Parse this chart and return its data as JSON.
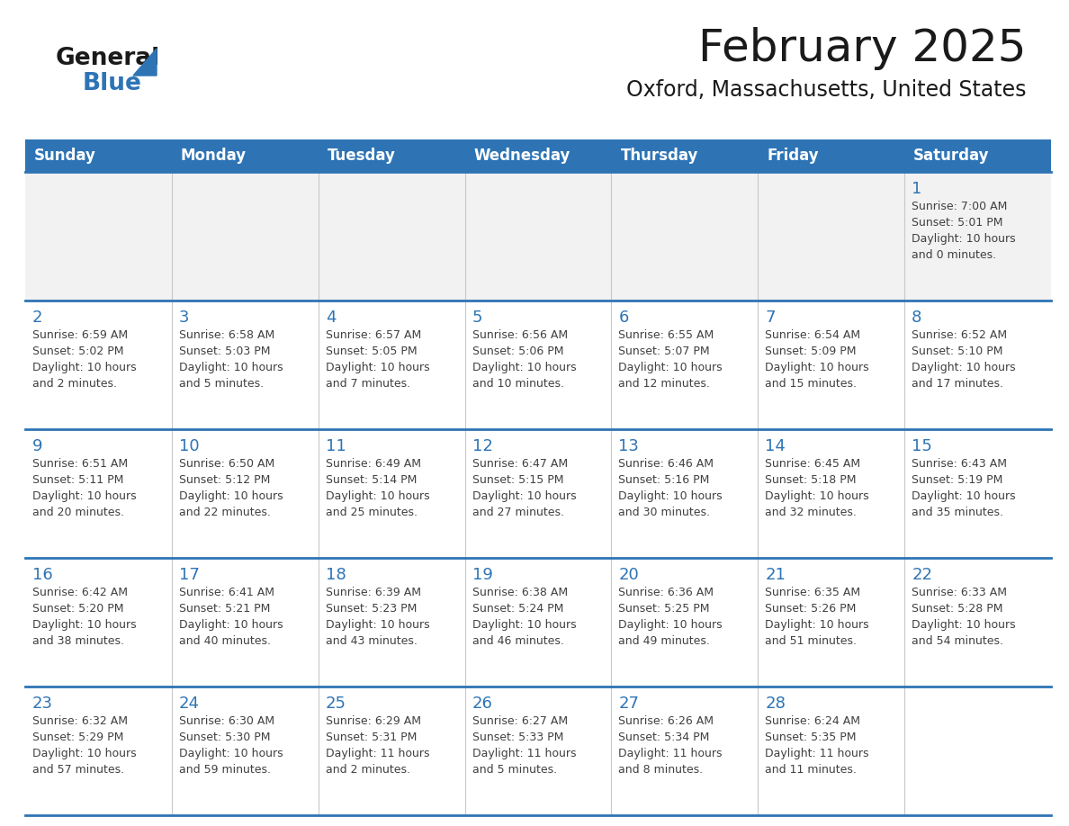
{
  "title": "February 2025",
  "subtitle": "Oxford, Massachusetts, United States",
  "days_of_week": [
    "Sunday",
    "Monday",
    "Tuesday",
    "Wednesday",
    "Thursday",
    "Friday",
    "Saturday"
  ],
  "header_bg": "#2E74B5",
  "header_text": "#FFFFFF",
  "cell_bg_white": "#FFFFFF",
  "cell_bg_gray": "#F2F2F2",
  "day_number_color": "#2E74B5",
  "text_color": "#404040",
  "line_color": "#2E74B5",
  "calendar_data": [
    [
      null,
      null,
      null,
      null,
      null,
      null,
      1
    ],
    [
      2,
      3,
      4,
      5,
      6,
      7,
      8
    ],
    [
      9,
      10,
      11,
      12,
      13,
      14,
      15
    ],
    [
      16,
      17,
      18,
      19,
      20,
      21,
      22
    ],
    [
      23,
      24,
      25,
      26,
      27,
      28,
      null
    ]
  ],
  "sun_data": {
    "1": {
      "rise": "7:00 AM",
      "set": "5:01 PM",
      "hours": 10,
      "minutes": 0
    },
    "2": {
      "rise": "6:59 AM",
      "set": "5:02 PM",
      "hours": 10,
      "minutes": 2
    },
    "3": {
      "rise": "6:58 AM",
      "set": "5:03 PM",
      "hours": 10,
      "minutes": 5
    },
    "4": {
      "rise": "6:57 AM",
      "set": "5:05 PM",
      "hours": 10,
      "minutes": 7
    },
    "5": {
      "rise": "6:56 AM",
      "set": "5:06 PM",
      "hours": 10,
      "minutes": 10
    },
    "6": {
      "rise": "6:55 AM",
      "set": "5:07 PM",
      "hours": 10,
      "minutes": 12
    },
    "7": {
      "rise": "6:54 AM",
      "set": "5:09 PM",
      "hours": 10,
      "minutes": 15
    },
    "8": {
      "rise": "6:52 AM",
      "set": "5:10 PM",
      "hours": 10,
      "minutes": 17
    },
    "9": {
      "rise": "6:51 AM",
      "set": "5:11 PM",
      "hours": 10,
      "minutes": 20
    },
    "10": {
      "rise": "6:50 AM",
      "set": "5:12 PM",
      "hours": 10,
      "minutes": 22
    },
    "11": {
      "rise": "6:49 AM",
      "set": "5:14 PM",
      "hours": 10,
      "minutes": 25
    },
    "12": {
      "rise": "6:47 AM",
      "set": "5:15 PM",
      "hours": 10,
      "minutes": 27
    },
    "13": {
      "rise": "6:46 AM",
      "set": "5:16 PM",
      "hours": 10,
      "minutes": 30
    },
    "14": {
      "rise": "6:45 AM",
      "set": "5:18 PM",
      "hours": 10,
      "minutes": 32
    },
    "15": {
      "rise": "6:43 AM",
      "set": "5:19 PM",
      "hours": 10,
      "minutes": 35
    },
    "16": {
      "rise": "6:42 AM",
      "set": "5:20 PM",
      "hours": 10,
      "minutes": 38
    },
    "17": {
      "rise": "6:41 AM",
      "set": "5:21 PM",
      "hours": 10,
      "minutes": 40
    },
    "18": {
      "rise": "6:39 AM",
      "set": "5:23 PM",
      "hours": 10,
      "minutes": 43
    },
    "19": {
      "rise": "6:38 AM",
      "set": "5:24 PM",
      "hours": 10,
      "minutes": 46
    },
    "20": {
      "rise": "6:36 AM",
      "set": "5:25 PM",
      "hours": 10,
      "minutes": 49
    },
    "21": {
      "rise": "6:35 AM",
      "set": "5:26 PM",
      "hours": 10,
      "minutes": 51
    },
    "22": {
      "rise": "6:33 AM",
      "set": "5:28 PM",
      "hours": 10,
      "minutes": 54
    },
    "23": {
      "rise": "6:32 AM",
      "set": "5:29 PM",
      "hours": 10,
      "minutes": 57
    },
    "24": {
      "rise": "6:30 AM",
      "set": "5:30 PM",
      "hours": 10,
      "minutes": 59
    },
    "25": {
      "rise": "6:29 AM",
      "set": "5:31 PM",
      "hours": 11,
      "minutes": 2
    },
    "26": {
      "rise": "6:27 AM",
      "set": "5:33 PM",
      "hours": 11,
      "minutes": 5
    },
    "27": {
      "rise": "6:26 AM",
      "set": "5:34 PM",
      "hours": 11,
      "minutes": 8
    },
    "28": {
      "rise": "6:24 AM",
      "set": "5:35 PM",
      "hours": 11,
      "minutes": 11
    }
  },
  "figsize": [
    11.88,
    9.18
  ],
  "dpi": 100
}
